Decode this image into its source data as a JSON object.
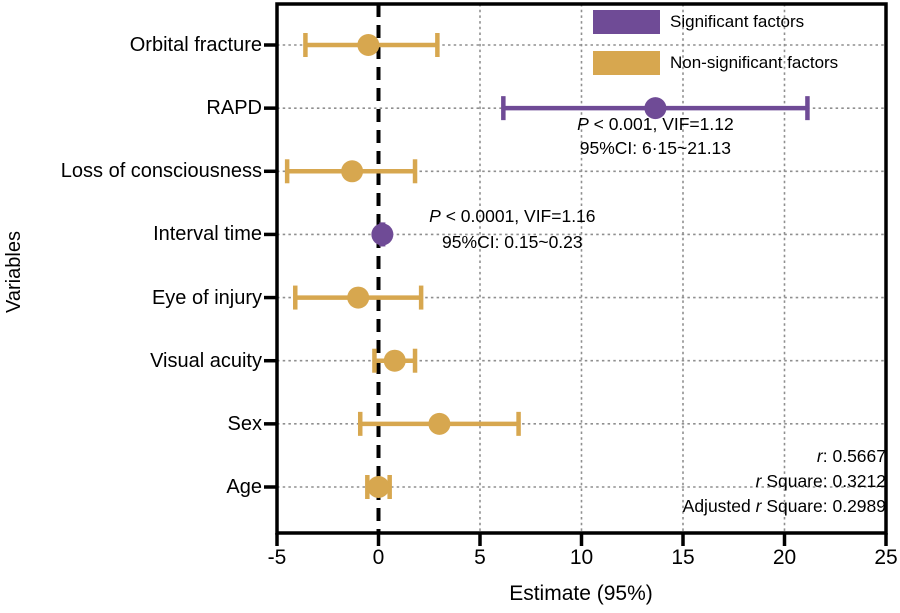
{
  "chart_data": {
    "type": "scatter",
    "subtype": "forest-plot",
    "title": "",
    "xlabel": "Estimate (95%)",
    "ylabel": "Variables",
    "xlim": [
      -5,
      25
    ],
    "xticks": [
      -5,
      0,
      5,
      10,
      15,
      20,
      25
    ],
    "reference_line_x": 0,
    "grid": true,
    "legend_position": "top-right",
    "legend": [
      {
        "label": "Significant factors",
        "color": "#6f4b96"
      },
      {
        "label": "Non-significant factors",
        "color": "#d7a74f"
      }
    ],
    "points": [
      {
        "variable": "Orbital fracture",
        "estimate": -0.5,
        "ci_low": -3.6,
        "ci_high": 2.9,
        "significant": false,
        "annotation": null
      },
      {
        "variable": "RAPD",
        "estimate": 13.64,
        "ci_low": 6.15,
        "ci_high": 21.13,
        "significant": true,
        "annotation": {
          "dx": 0,
          "dy1": 16,
          "dy2": 40,
          "lines": [
            {
              "italic": "P",
              "rest": " < 0.001, VIF=1.12"
            },
            {
              "italic": "",
              "rest": "95%CI: 6·15~21.13"
            }
          ]
        }
      },
      {
        "variable": "Loss of consciousness",
        "estimate": -1.3,
        "ci_low": -4.5,
        "ci_high": 1.8,
        "significant": false,
        "annotation": null
      },
      {
        "variable": "Interval time",
        "estimate": 0.19,
        "ci_low": 0.15,
        "ci_high": 0.23,
        "significant": true,
        "annotation": {
          "dx": 130,
          "dy1": -18,
          "dy2": 8,
          "lines": [
            {
              "italic": "P",
              "rest": " < 0.0001, VIF=1.16"
            },
            {
              "italic": "",
              "rest": "95%CI: 0.15~0.23"
            }
          ]
        }
      },
      {
        "variable": "Eye of injury",
        "estimate": -1.0,
        "ci_low": -4.1,
        "ci_high": 2.1,
        "significant": false,
        "annotation": null
      },
      {
        "variable": "Visual acuity",
        "estimate": 0.8,
        "ci_low": -0.2,
        "ci_high": 1.8,
        "significant": false,
        "annotation": null
      },
      {
        "variable": "Sex",
        "estimate": 3.0,
        "ci_low": -0.9,
        "ci_high": 6.9,
        "significant": false,
        "annotation": null
      },
      {
        "variable": "Age",
        "estimate": 0.0,
        "ci_low": -0.55,
        "ci_high": 0.55,
        "significant": false,
        "annotation": null
      }
    ],
    "stats": [
      {
        "pre": "",
        "italic": "r",
        "post": ": 0.5667"
      },
      {
        "pre": "",
        "italic": "r",
        "post": " Square: 0.3212"
      },
      {
        "pre": "Adjusted ",
        "italic": "r",
        "post": " Square: 0.2989"
      }
    ]
  }
}
